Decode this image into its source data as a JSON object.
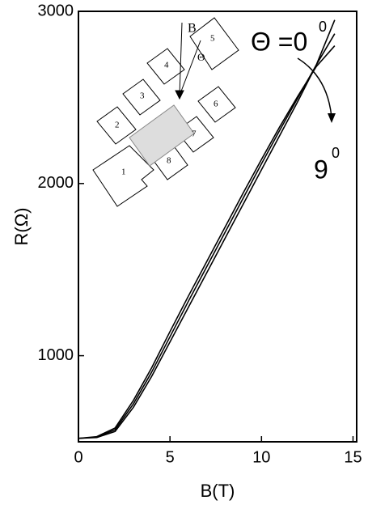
{
  "chart_data": {
    "type": "line",
    "x_label": "B(T)",
    "y_label": "R(Ω)",
    "x": [
      0,
      1,
      2,
      3,
      4,
      5,
      6,
      7,
      8,
      9,
      10,
      11,
      12,
      13,
      14
    ],
    "series": [
      {
        "color": "#000000",
        "values": [
          520,
          525,
          560,
          700,
          880,
          1080,
          1280,
          1480,
          1680,
          1880,
          2080,
          2280,
          2480,
          2690,
          2950
        ]
      },
      {
        "color": "#000000",
        "values": [
          520,
          527,
          570,
          720,
          905,
          1110,
          1315,
          1515,
          1715,
          1915,
          2115,
          2310,
          2500,
          2690,
          2870
        ]
      },
      {
        "color": "#000000",
        "values": [
          520,
          530,
          580,
          740,
          930,
          1140,
          1345,
          1545,
          1745,
          1945,
          2140,
          2330,
          2510,
          2680,
          2800
        ]
      }
    ],
    "xlim": [
      0,
      15.2
    ],
    "xticks": [
      0,
      5,
      10,
      15
    ],
    "ylim": [
      500,
      3000
    ],
    "yticks": [
      1000,
      2000,
      3000
    ],
    "annotations": [
      {
        "text": "Θ =0",
        "sup": "0"
      },
      {
        "text": "9",
        "sup": "0"
      }
    ],
    "inset": {
      "field": "B",
      "angle": "Θ",
      "pads": [
        "1",
        "2",
        "3",
        "4",
        "5",
        "6",
        "7",
        "8"
      ]
    }
  }
}
